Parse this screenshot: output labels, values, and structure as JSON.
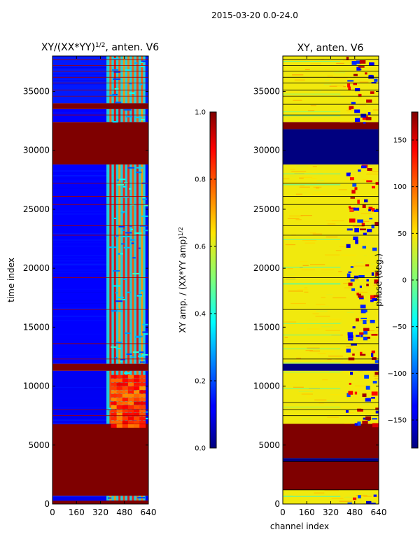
{
  "figure": {
    "suptitle": "2015-03-20 0.0-24.0"
  },
  "chart_data": [
    {
      "type": "heatmap",
      "title": "XY/(XX*YY)^{1/2}, anten. V6",
      "title_main": "XY/(XX*YY)",
      "title_sup": "1/2",
      "title_tail": ", anten. V6",
      "xlabel": "",
      "ylabel": "time index",
      "xlim": [
        0,
        640
      ],
      "ylim": [
        0,
        38000
      ],
      "xticks": [
        0,
        160,
        320,
        480,
        640
      ],
      "yticks": [
        0,
        5000,
        10000,
        15000,
        20000,
        25000,
        30000,
        35000
      ],
      "colormap": "jet",
      "colorbar": {
        "label": "XY amp. / (XX*YY amp)^{1/2}",
        "label_main": "XY amp. / (XX*YY amp)",
        "label_sup": "1/2",
        "range": [
          0.0,
          1.0
        ],
        "ticks": [
          "0.0",
          "0.2",
          "0.4",
          "0.6",
          "0.8",
          "1.0"
        ],
        "tick_values": [
          0.0,
          0.2,
          0.4,
          0.6,
          0.8,
          1.0
        ]
      },
      "bands": [
        {
          "t0": 0,
          "t1": 300,
          "value": 1.0
        },
        {
          "t0": 300,
          "t1": 700,
          "value": 0.1
        },
        {
          "t0": 700,
          "t1": 6800,
          "value": 1.0
        },
        {
          "t0": 6800,
          "t1": 11300,
          "value": 0.1
        },
        {
          "t0": 11300,
          "t1": 11900,
          "value": 1.0
        },
        {
          "t0": 11900,
          "t1": 28800,
          "value": 0.12
        },
        {
          "t0": 28800,
          "t1": 32400,
          "value": 1.0
        },
        {
          "t0": 32400,
          "t1": 33500,
          "value": 0.12
        },
        {
          "t0": 33500,
          "t1": 34000,
          "value": 1.0
        },
        {
          "t0": 34000,
          "t1": 38000,
          "value": 0.15
        }
      ],
      "hlines": [
        7500,
        8000,
        12300,
        13600,
        16500,
        19200,
        22800,
        23600,
        25400,
        26100,
        27200,
        33000,
        34600,
        35100,
        35700,
        36200,
        36700,
        37200,
        37700
      ]
    },
    {
      "type": "heatmap",
      "title": "XY, anten. V6",
      "xlabel": "channel index",
      "ylabel": "",
      "xlim": [
        0,
        640
      ],
      "ylim": [
        0,
        38000
      ],
      "xticks": [
        0,
        160,
        320,
        480,
        640
      ],
      "yticks": [
        0,
        5000,
        10000,
        15000,
        20000,
        25000,
        30000,
        35000
      ],
      "colormap": "jet",
      "colorbar": {
        "label": "phase (deg.)",
        "range": [
          -180,
          180
        ],
        "ticks": [
          "150",
          "100",
          "50",
          "0",
          "−50",
          "−100",
          "−150"
        ],
        "tick_values": [
          150,
          100,
          50,
          0,
          -50,
          -100,
          -150
        ]
      },
      "bands": [
        {
          "t0": 0,
          "t1": 1200,
          "value": 45
        },
        {
          "t0": 1200,
          "t1": 3600,
          "value": 180
        },
        {
          "t0": 3600,
          "t1": 3900,
          "value": -180
        },
        {
          "t0": 3900,
          "t1": 6800,
          "value": 180
        },
        {
          "t0": 6800,
          "t1": 11300,
          "value": 45
        },
        {
          "t0": 11300,
          "t1": 11900,
          "value": -180
        },
        {
          "t0": 11900,
          "t1": 28800,
          "value": 45
        },
        {
          "t0": 28800,
          "t1": 31800,
          "value": -180
        },
        {
          "t0": 31800,
          "t1": 32400,
          "value": 180
        },
        {
          "t0": 32400,
          "t1": 38000,
          "value": 45
        }
      ],
      "hlines": [
        1200,
        3600,
        7500,
        8000,
        8600,
        12300,
        13600,
        16500,
        19200,
        22800,
        23600,
        25400,
        26100,
        27200,
        33000,
        33900,
        34600,
        35100,
        35700,
        36200,
        36700,
        37200,
        37700
      ]
    }
  ]
}
